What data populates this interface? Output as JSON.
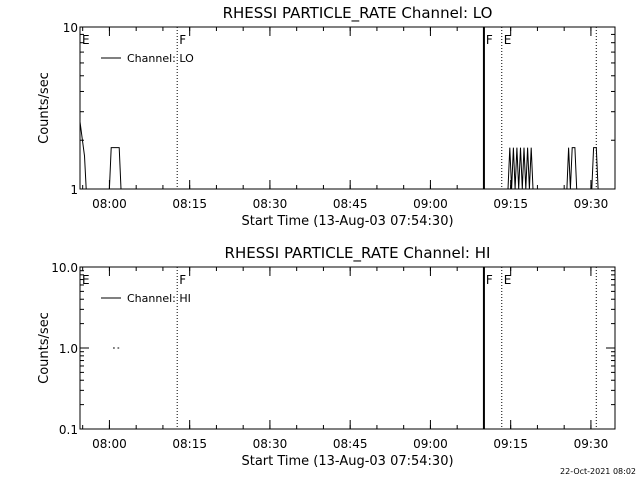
{
  "footer_timestamp": "22-Oct-2021 08:02",
  "colors": {
    "background": "#ffffff",
    "foreground": "#000000"
  },
  "chart_data": [
    {
      "type": "line",
      "title": "RHESSI PARTICLE_RATE Channel: LO",
      "xlabel": "Start Time (13-Aug-03 07:54:30)",
      "ylabel": "Counts/sec",
      "yscale": "log",
      "ylim": [
        1,
        10
      ],
      "xlim": [
        "07:54:30",
        "09:34:30"
      ],
      "y_tick_labels": [
        {
          "value": 10,
          "label": "10"
        },
        {
          "value": 1,
          "label": "1"
        }
      ],
      "x_tick_labels": [
        {
          "time": "08:00",
          "label": "08:00"
        },
        {
          "time": "08:15",
          "label": "08:15"
        },
        {
          "time": "08:30",
          "label": "08:30"
        },
        {
          "time": "08:45",
          "label": "08:45"
        },
        {
          "time": "09:00",
          "label": "09:00"
        },
        {
          "time": "09:15",
          "label": "09:15"
        },
        {
          "time": "09:30",
          "label": "09:30"
        }
      ],
      "legend": {
        "placement": "top-left",
        "entries": [
          "Channel: LO"
        ]
      },
      "flags": [
        {
          "label": "E",
          "time": "07:54:30",
          "line": "none"
        },
        {
          "label": "F",
          "time": "08:12:40",
          "line": "dotted"
        },
        {
          "label": "F",
          "time": "09:10:00",
          "line": "solid-thick"
        },
        {
          "label": "E",
          "time": "09:13:20",
          "line": "dotted"
        },
        {
          "label": "",
          "time": "09:31:00",
          "line": "dotted"
        }
      ],
      "series": [
        {
          "name": "Channel: LO",
          "points": [
            [
              "07:54:30",
              2.6
            ],
            [
              "07:55:20",
              1.6
            ],
            [
              "07:55:40",
              1.0
            ],
            [
              "08:00:00",
              1.0
            ],
            [
              "08:00:20",
              1.8
            ],
            [
              "08:01:50",
              1.8
            ],
            [
              "08:02:10",
              1.0
            ],
            [
              "09:14:30",
              1.0
            ],
            [
              "09:14:50",
              1.8
            ],
            [
              "09:15:10",
              1.0
            ],
            [
              "09:15:30",
              1.8
            ],
            [
              "09:15:50",
              1.0
            ],
            [
              "09:16:10",
              1.8
            ],
            [
              "09:16:30",
              1.0
            ],
            [
              "09:16:50",
              1.8
            ],
            [
              "09:17:10",
              1.0
            ],
            [
              "09:17:30",
              1.8
            ],
            [
              "09:17:50",
              1.0
            ],
            [
              "09:18:10",
              1.8
            ],
            [
              "09:18:30",
              1.0
            ],
            [
              "09:18:50",
              1.8
            ],
            [
              "09:19:10",
              1.0
            ],
            [
              "09:25:30",
              1.0
            ],
            [
              "09:25:50",
              1.8
            ],
            [
              "09:26:10",
              1.0
            ],
            [
              "09:26:30",
              1.8
            ],
            [
              "09:27:00",
              1.8
            ],
            [
              "09:27:20",
              1.0
            ],
            [
              "09:30:10",
              1.0
            ],
            [
              "09:30:30",
              1.8
            ],
            [
              "09:31:00",
              1.8
            ],
            [
              "09:31:20",
              1.0
            ]
          ]
        }
      ]
    },
    {
      "type": "line",
      "title": "RHESSI PARTICLE_RATE Channel: HI",
      "xlabel": "Start Time (13-Aug-03 07:54:30)",
      "ylabel": "Counts/sec",
      "yscale": "log",
      "ylim": [
        0.1,
        10
      ],
      "xlim": [
        "07:54:30",
        "09:34:30"
      ],
      "y_tick_labels": [
        {
          "value": 10,
          "label": "10.0"
        },
        {
          "value": 1,
          "label": "1.0"
        },
        {
          "value": 0.1,
          "label": "0.1"
        }
      ],
      "x_tick_labels": [
        {
          "time": "08:00",
          "label": "08:00"
        },
        {
          "time": "08:15",
          "label": "08:15"
        },
        {
          "time": "08:30",
          "label": "08:30"
        },
        {
          "time": "08:45",
          "label": "08:45"
        },
        {
          "time": "09:00",
          "label": "09:00"
        },
        {
          "time": "09:15",
          "label": "09:15"
        },
        {
          "time": "09:30",
          "label": "09:30"
        }
      ],
      "legend": {
        "placement": "top-left",
        "entries": [
          "Channel: HI"
        ]
      },
      "flags": [
        {
          "label": "E",
          "time": "07:54:30",
          "line": "none"
        },
        {
          "label": "F",
          "time": "08:12:40",
          "line": "dotted"
        },
        {
          "label": "F",
          "time": "09:10:00",
          "line": "solid-thick"
        },
        {
          "label": "E",
          "time": "09:13:20",
          "line": "dotted"
        },
        {
          "label": "",
          "time": "09:31:00",
          "line": "dotted"
        }
      ],
      "series": [
        {
          "name": "Channel: HI",
          "segments": [
            [
              [
                "08:00:40",
                1.0
              ],
              [
                "08:01:00",
                1.0
              ]
            ],
            [
              [
                "08:01:30",
                1.0
              ],
              [
                "08:01:50",
                1.0
              ]
            ]
          ]
        }
      ]
    }
  ]
}
